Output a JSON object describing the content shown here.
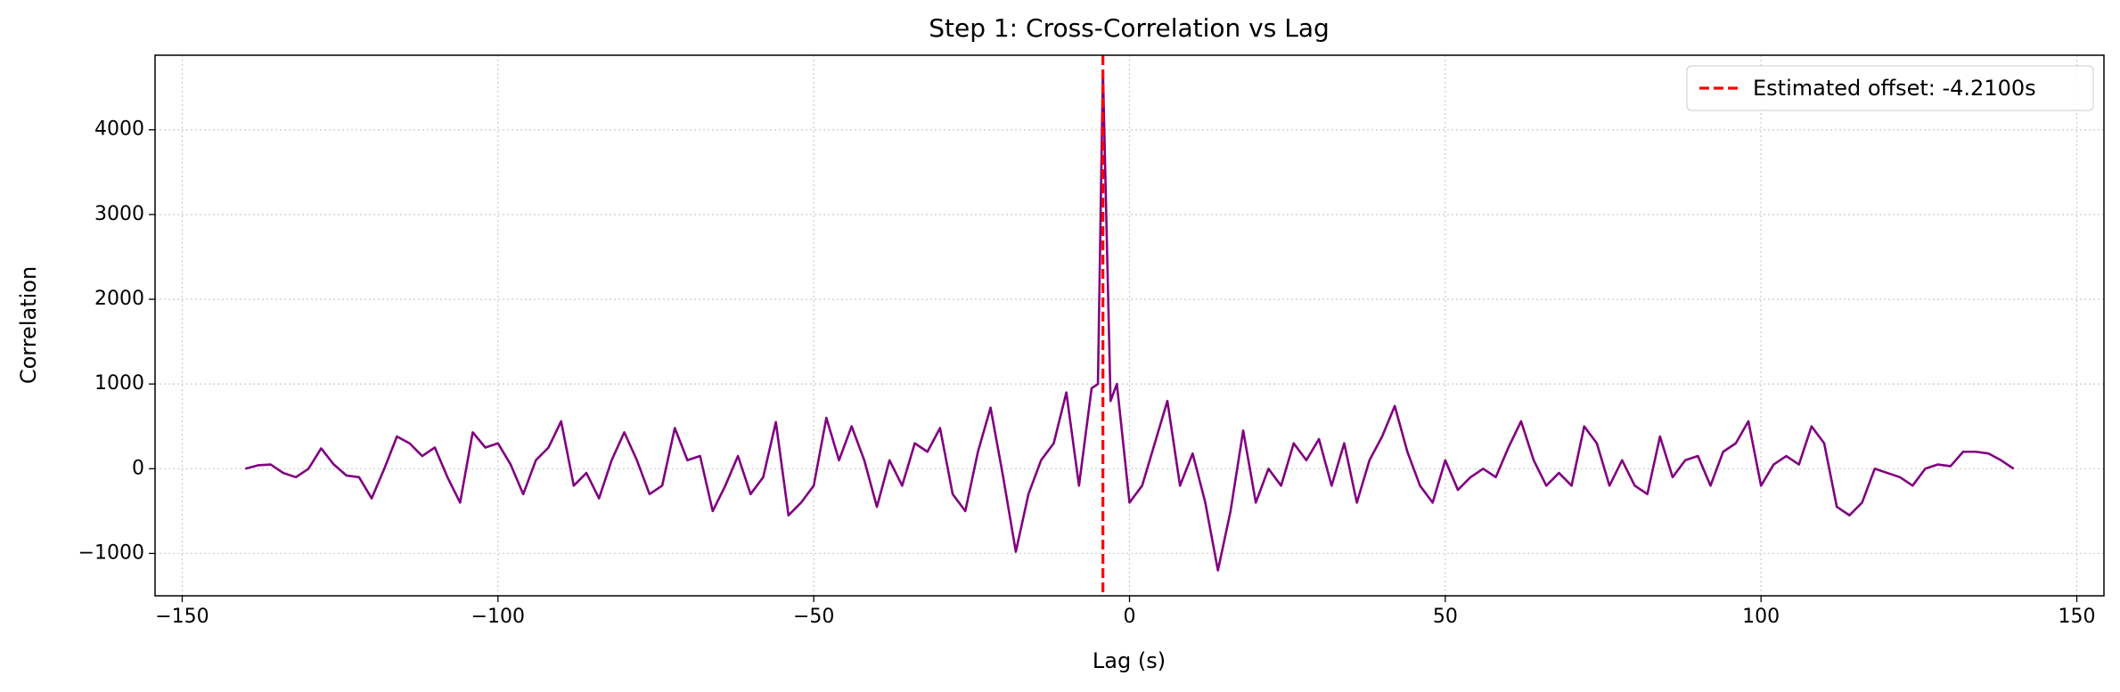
{
  "chart_data": {
    "type": "line",
    "title": "Step 1: Cross-Correlation vs Lag",
    "x_label": "Lag (s)",
    "y_label": "Correlation",
    "x": [
      -140,
      -138,
      -136,
      -134,
      -132,
      -130,
      -128,
      -126,
      -124,
      -122,
      -120,
      -118,
      -116,
      -114,
      -112,
      -110,
      -108,
      -106,
      -104,
      -102,
      -100,
      -98,
      -96,
      -94,
      -92,
      -90,
      -88,
      -86,
      -84,
      -82,
      -80,
      -78,
      -76,
      -74,
      -72,
      -70,
      -68,
      -66,
      -64,
      -62,
      -60,
      -58,
      -56,
      -54,
      -52,
      -50,
      -48,
      -46,
      -44,
      -42,
      -40,
      -38,
      -36,
      -34,
      -32,
      -30,
      -28,
      -26,
      -24,
      -22,
      -20,
      -18,
      -16,
      -14,
      -12,
      -10,
      -8,
      -6,
      -5,
      -4.21,
      -3,
      -2,
      0,
      2,
      4,
      6,
      8,
      10,
      12,
      14,
      16,
      18,
      20,
      22,
      24,
      26,
      28,
      30,
      32,
      34,
      36,
      38,
      40,
      42,
      44,
      46,
      48,
      50,
      52,
      54,
      56,
      58,
      60,
      62,
      64,
      66,
      68,
      70,
      72,
      74,
      76,
      78,
      80,
      82,
      84,
      86,
      88,
      90,
      92,
      94,
      96,
      98,
      100,
      102,
      104,
      106,
      108,
      110,
      112,
      114,
      116,
      118,
      120,
      122,
      124,
      126,
      128,
      130,
      132,
      134,
      136,
      138,
      140
    ],
    "values": [
      0,
      40,
      50,
      -50,
      -100,
      0,
      240,
      50,
      -80,
      -100,
      -350,
      0,
      380,
      300,
      150,
      250,
      -100,
      -400,
      430,
      250,
      300,
      50,
      -300,
      100,
      250,
      560,
      -200,
      -50,
      -350,
      100,
      430,
      100,
      -300,
      -200,
      480,
      100,
      150,
      -500,
      -200,
      150,
      -300,
      -100,
      550,
      -550,
      -400,
      -200,
      600,
      100,
      500,
      100,
      -450,
      100,
      -200,
      300,
      200,
      480,
      -300,
      -500,
      200,
      720,
      -100,
      -980,
      -300,
      100,
      300,
      900,
      -200,
      950,
      1000,
      4700,
      800,
      1000,
      -400,
      -200,
      300,
      800,
      -200,
      180,
      -400,
      -1200,
      -500,
      450,
      -400,
      0,
      -200,
      300,
      100,
      350,
      -200,
      300,
      -400,
      100,
      380,
      740,
      200,
      -200,
      -400,
      100,
      -250,
      -100,
      0,
      -100,
      250,
      560,
      100,
      -200,
      -50,
      -200,
      500,
      300,
      -200,
      100,
      -200,
      -300,
      380,
      -100,
      100,
      150,
      -200,
      200,
      300,
      560,
      -200,
      50,
      150,
      50,
      500,
      300,
      -450,
      -550,
      -400,
      0,
      -50,
      -100,
      -200,
      0,
      50,
      30,
      200,
      200,
      180,
      100,
      0
    ],
    "color": "#800080",
    "vline": {
      "value": -4.21,
      "label": "Estimated offset: -4.2100s",
      "color": "#ff0000"
    },
    "xlim": [
      -154.3,
      154.3
    ],
    "ylim": [
      -1500,
      4880
    ],
    "xticks": [
      {
        "value": -150,
        "label": "−150"
      },
      {
        "value": -100,
        "label": "−100"
      },
      {
        "value": -50,
        "label": "−50"
      },
      0,
      50,
      100,
      150
    ],
    "yticks": [
      {
        "value": -1000,
        "label": "−1000"
      },
      0,
      1000,
      2000,
      3000,
      4000
    ],
    "grid": true,
    "legend": "upper right"
  }
}
